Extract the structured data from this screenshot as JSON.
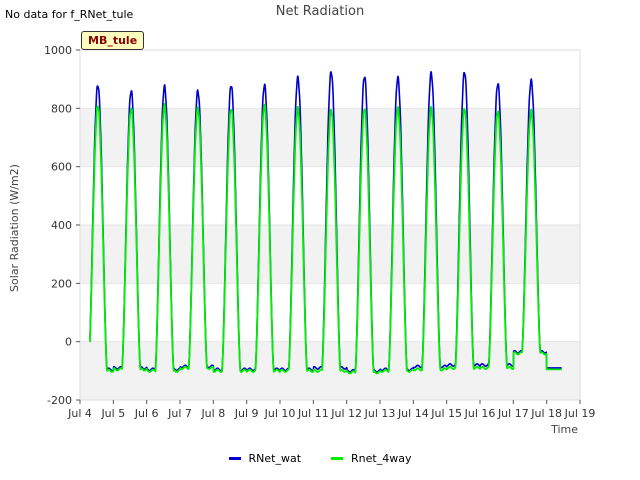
{
  "no_data_text": "No data for f_RNet_tule",
  "badge_text": "MB_tule",
  "chart_data": {
    "type": "line",
    "title": "Net Radiation",
    "xlabel": "Time",
    "ylabel": "Solar Radiation (W/m2)",
    "ylim": [
      -200,
      1000
    ],
    "xlim": [
      4,
      19
    ],
    "x_ticks": [
      4,
      5,
      6,
      7,
      8,
      9,
      10,
      11,
      12,
      13,
      14,
      15,
      16,
      17,
      18,
      19
    ],
    "x_tick_labels": [
      "Jul 4",
      "Jul 5",
      "Jul 6",
      "Jul 7",
      "Jul 8",
      "Jul 9",
      "Jul 10",
      "Jul 11",
      "Jul 12",
      "Jul 13",
      "Jul 14",
      "Jul 15",
      "Jul 16",
      "Jul 17",
      "Jul 18",
      "Jul 19"
    ],
    "y_ticks": [
      -200,
      0,
      200,
      400,
      600,
      800,
      1000
    ],
    "y_tick_labels": [
      "-200",
      "0",
      "200",
      "400",
      "600",
      "800",
      "1000"
    ],
    "data_start": 4.3,
    "data_end": 18.45,
    "series": [
      {
        "name": "RNet_wat",
        "color": "#0000cc",
        "day_peaks": [
          880,
          860,
          875,
          860,
          880,
          880,
          905,
          925,
          910,
          905,
          920,
          925,
          885,
          895
        ],
        "night_baseline": [
          -95,
          -90,
          -95,
          -85,
          -95,
          -95,
          -95,
          -90,
          -100,
          -95,
          -85,
          -80,
          -80,
          -35,
          -90
        ]
      },
      {
        "name": "Rnet_4way",
        "color": "#00ee00",
        "day_peaks": [
          810,
          800,
          810,
          800,
          800,
          810,
          800,
          795,
          800,
          800,
          800,
          800,
          790,
          790
        ],
        "night_baseline": [
          -100,
          -95,
          -100,
          -90,
          -100,
          -100,
          -100,
          -100,
          -105,
          -100,
          -95,
          -90,
          -90,
          -40,
          -95
        ]
      }
    ]
  }
}
